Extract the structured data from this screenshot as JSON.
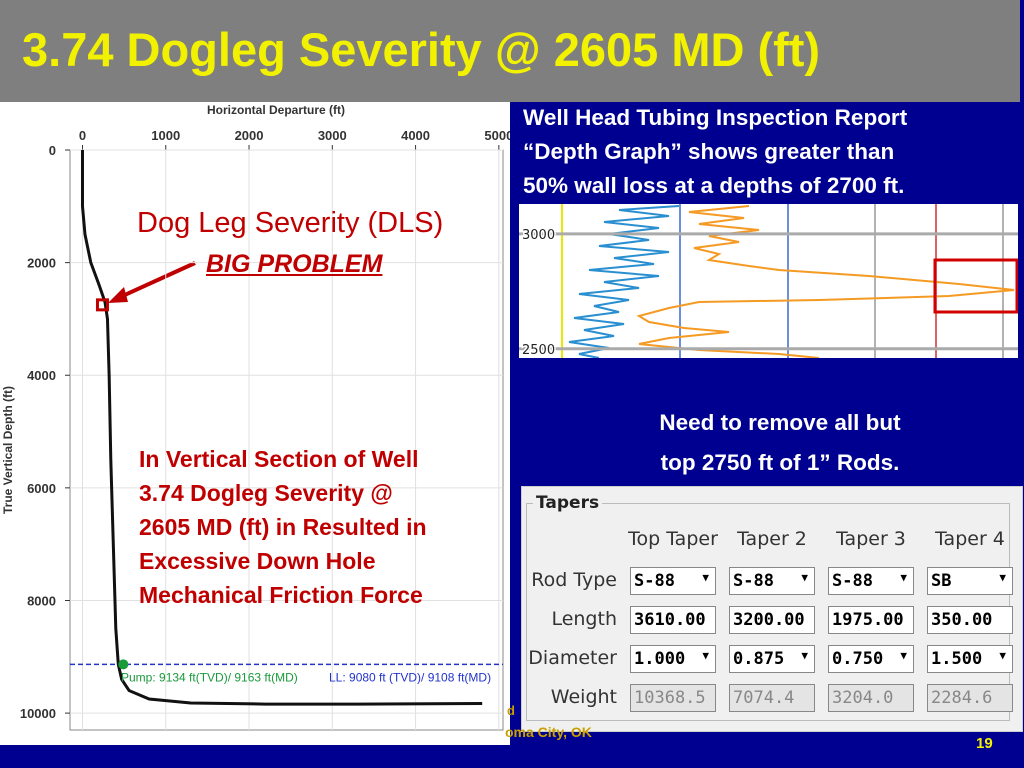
{
  "title": "3.74 Dogleg Severity @ 2605 MD (ft)",
  "well_chart": {
    "type": "line",
    "x_label": "Horizontal Departure (ft)",
    "y_label": "True Vertical Depth (ft)",
    "xlim": [
      -150,
      5050
    ],
    "ylim": [
      0,
      10300
    ],
    "xticks": [
      0,
      1000,
      2000,
      3000,
      4000,
      5000
    ],
    "yticks": [
      0,
      2000,
      4000,
      6000,
      8000,
      10000
    ],
    "x": [
      0,
      0,
      30,
      100,
      200,
      270,
      300,
      320,
      340,
      370,
      400,
      430,
      470,
      560,
      800,
      1300,
      2200,
      3300,
      4800
    ],
    "y": [
      0,
      1000,
      1500,
      2000,
      2400,
      2700,
      3000,
      4000,
      5500,
      7000,
      8500,
      9134,
      9400,
      9600,
      9750,
      9820,
      9840,
      9840,
      9830
    ],
    "pump_point": {
      "x": 490,
      "y": 9134
    },
    "dogleg_point": {
      "x": 240,
      "y": 2750
    },
    "pump_label": "Pump: 9134 ft(TVD)/ 9163 ft(MD)",
    "ll_label": "LL: 9080 ft (TVD)/ 9108 ft(MD)"
  },
  "dls_label": "Dog Leg Severity (DLS)",
  "big_problem": "BIG PROBLEM",
  "vertical_note": [
    "In Vertical Section of Well",
    "3.74 Dogleg Severity @",
    "2605 MD (ft) in Resulted in",
    "Excessive Down Hole",
    "Mechanical Friction Force"
  ],
  "report_text": [
    "Well Head Tubing Inspection Report",
    "“Depth Graph” shows greater than",
    "50% wall loss at a depths of 2700 ft."
  ],
  "depth_graph": {
    "ylim": [
      3130,
      2460
    ],
    "yticks": [
      3000,
      2500
    ]
  },
  "remove_note": [
    "Need to remove all but",
    "top 2750 ft of 1” Rods."
  ],
  "tapers": {
    "title": "Tapers",
    "columns": [
      "Top Taper",
      "Taper 2",
      "Taper 3",
      "Taper 4"
    ],
    "rows": [
      {
        "label": "Rod Type",
        "values": [
          "S-88",
          "S-88",
          "S-88",
          "SB"
        ]
      },
      {
        "label": "Length",
        "values": [
          "3610.00",
          "3200.00",
          "1975.00",
          "350.00"
        ]
      },
      {
        "label": "Diameter",
        "values": [
          "1.000",
          "0.875",
          "0.750",
          "1.500"
        ]
      },
      {
        "label": "Weight",
        "values": [
          "10368.5",
          "7074.4",
          "3204.0",
          "2284.6"
        ]
      }
    ]
  },
  "footer": {
    "fragment": "d",
    "location": "oma City, OK",
    "page": "19"
  }
}
